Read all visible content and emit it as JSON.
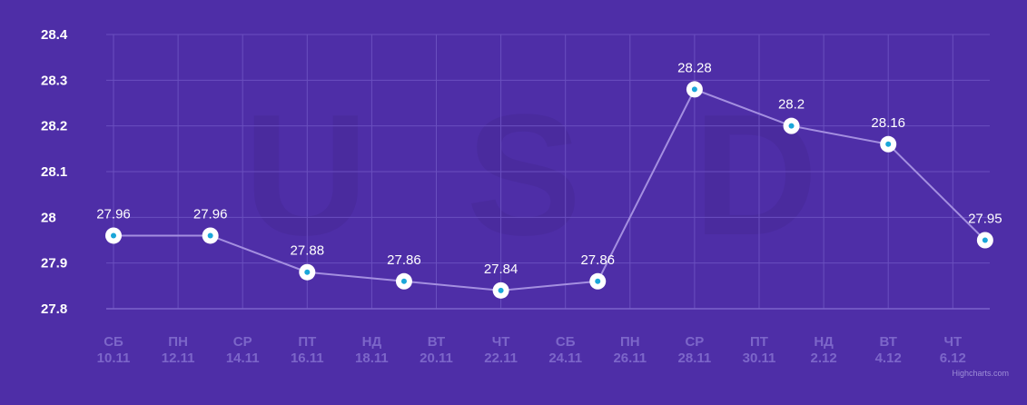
{
  "chart_data": {
    "type": "line",
    "title": "",
    "xlabel": "",
    "ylabel": "",
    "background_watermark": [
      "U",
      "S",
      "D"
    ],
    "ylim": [
      27.8,
      28.4
    ],
    "y_ticks": [
      "27.8",
      "27.9",
      "28",
      "28.1",
      "28.2",
      "28.3",
      "28.4"
    ],
    "grid": true,
    "x_ticks": [
      {
        "day": "СБ",
        "date": "10.11"
      },
      {
        "day": "ПН",
        "date": "12.11"
      },
      {
        "day": "СР",
        "date": "14.11"
      },
      {
        "day": "ПТ",
        "date": "16.11"
      },
      {
        "day": "НД",
        "date": "18.11"
      },
      {
        "day": "ВТ",
        "date": "20.11"
      },
      {
        "day": "ЧТ",
        "date": "22.11"
      },
      {
        "day": "СБ",
        "date": "24.11"
      },
      {
        "day": "ПН",
        "date": "26.11"
      },
      {
        "day": "СР",
        "date": "28.11"
      },
      {
        "day": "ПТ",
        "date": "30.11"
      },
      {
        "day": "НД",
        "date": "2.12"
      },
      {
        "day": "ВТ",
        "date": "4.12"
      },
      {
        "day": "ЧТ",
        "date": "6.12"
      }
    ],
    "series": [
      {
        "points": [
          {
            "date": "10.11",
            "value": 27.96
          },
          {
            "date": "13.11",
            "value": 27.96
          },
          {
            "date": "16.11",
            "value": 27.88
          },
          {
            "date": "19.11",
            "value": 27.86
          },
          {
            "date": "22.11",
            "value": 27.84
          },
          {
            "date": "25.11",
            "value": 27.86
          },
          {
            "date": "28.11",
            "value": 28.28
          },
          {
            "date": "1.12",
            "value": 28.2
          },
          {
            "date": "4.12",
            "value": 28.16
          },
          {
            "date": "7.12",
            "value": 27.95
          }
        ],
        "labels": [
          "27.96",
          "27.96",
          "27.88",
          "27.86",
          "27.84",
          "27.86",
          "28.28",
          "28.2",
          "28.16",
          "27.95"
        ]
      }
    ],
    "colors": {
      "background": "#4e2ea7",
      "grid": "#6a4fbf",
      "line": "#a48fe0",
      "marker_fill": "#ffffff",
      "marker_center": "#1aa6d9",
      "x_tick_text": "#7c66c9",
      "y_tick_text": "#ffffff",
      "watermark": "#4a2b9e"
    }
  },
  "credits": "Highcharts.com"
}
